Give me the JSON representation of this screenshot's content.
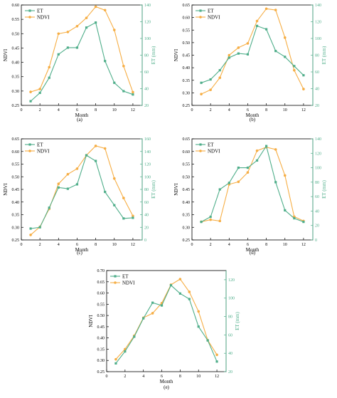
{
  "colors": {
    "ndvi": "#F6AE45",
    "et": "#4FAE8A",
    "axis": "#000000",
    "et_axis": "#4FAE8A"
  },
  "chart_data": [
    {
      "type": "line",
      "panel_label": "(a)",
      "xlabel": "Month",
      "ylabel_left": "NDVI",
      "ylabel_right": "ET (mm)",
      "x": [
        1,
        2,
        3,
        4,
        5,
        6,
        7,
        8,
        9,
        10,
        11,
        12
      ],
      "x_ticks": [
        0,
        2,
        4,
        6,
        8,
        10,
        12
      ],
      "xlim": [
        0,
        13
      ],
      "ylim_left": [
        0.25,
        0.6
      ],
      "yticks_left": [
        "0.25",
        "0.30",
        "0.35",
        "0.40",
        "0.45",
        "0.50",
        "0.55",
        "0.60"
      ],
      "ylim_right": [
        20,
        140
      ],
      "yticks_right": [
        "20",
        "40",
        "60",
        "80",
        "100",
        "120",
        "140"
      ],
      "legend": "top-left",
      "series": [
        {
          "name": "ET",
          "axis": "right",
          "values": [
            25,
            35,
            53,
            81,
            89,
            89,
            113,
            119,
            73,
            47,
            37,
            33
          ]
        },
        {
          "name": "NDVI",
          "axis": "left",
          "values": [
            0.297,
            0.307,
            0.383,
            0.5,
            0.506,
            0.526,
            0.555,
            0.594,
            0.582,
            0.513,
            0.387,
            0.296
          ]
        }
      ]
    },
    {
      "type": "line",
      "panel_label": "(b)",
      "xlabel": "Month",
      "ylabel_left": "NDVI",
      "ylabel_right": "ET (mm)",
      "x": [
        1,
        2,
        3,
        4,
        5,
        6,
        7,
        8,
        9,
        10,
        11,
        12
      ],
      "x_ticks": [
        0,
        2,
        4,
        6,
        8,
        10,
        12
      ],
      "xlim": [
        0,
        13
      ],
      "ylim_left": [
        0.25,
        0.65
      ],
      "yticks_left": [
        "0.25",
        "0.30",
        "0.35",
        "0.40",
        "0.45",
        "0.50",
        "0.55",
        "0.60",
        "0.65"
      ],
      "ylim_right": [
        20,
        140
      ],
      "yticks_right": [
        "20",
        "40",
        "60",
        "80",
        "100",
        "120",
        "140"
      ],
      "legend": "top-left",
      "series": [
        {
          "name": "ET",
          "axis": "right",
          "values": [
            47,
            51,
            62,
            77,
            82,
            81,
            115,
            111,
            85,
            78,
            67,
            56
          ]
        },
        {
          "name": "NDVI",
          "axis": "left",
          "values": [
            0.295,
            0.312,
            0.36,
            0.45,
            0.48,
            0.497,
            0.586,
            0.635,
            0.63,
            0.52,
            0.39,
            0.315
          ]
        }
      ]
    },
    {
      "type": "line",
      "panel_label": "(c)",
      "xlabel": "Month",
      "ylabel_left": "NDVI",
      "ylabel_right": "ET (mm)",
      "x": [
        1,
        2,
        3,
        4,
        5,
        6,
        7,
        8,
        9,
        10,
        11,
        12
      ],
      "x_ticks": [
        0,
        2,
        4,
        6,
        8,
        10,
        12
      ],
      "xlim": [
        0,
        13
      ],
      "ylim_left": [
        0.25,
        0.65
      ],
      "yticks_left": [
        "0.25",
        "0.30",
        "0.35",
        "0.40",
        "0.45",
        "0.50",
        "0.55",
        "0.60",
        "0.65"
      ],
      "ylim_right": [
        0,
        160
      ],
      "yticks_right": [
        "0",
        "20",
        "40",
        "60",
        "80",
        "100",
        "120",
        "140",
        "160"
      ],
      "legend": "top-left",
      "series": [
        {
          "name": "ET",
          "axis": "right",
          "values": [
            18,
            20,
            51,
            83,
            81,
            88,
            134,
            125,
            76,
            55,
            34,
            35
          ]
        },
        {
          "name": "NDVI",
          "axis": "left",
          "values": [
            0.27,
            0.302,
            0.373,
            0.472,
            0.51,
            0.532,
            0.585,
            0.622,
            0.612,
            0.493,
            0.416,
            0.345
          ]
        }
      ]
    },
    {
      "type": "line",
      "panel_label": "(d)",
      "xlabel": "Month",
      "ylabel_left": "NDVI",
      "ylabel_right": "ET (mm)",
      "x": [
        1,
        2,
        3,
        4,
        5,
        6,
        7,
        8,
        9,
        10,
        11,
        12
      ],
      "x_ticks": [
        0,
        2,
        4,
        6,
        8,
        10,
        12
      ],
      "xlim": [
        0,
        13
      ],
      "ylim_left": [
        0.25,
        0.65
      ],
      "yticks_left": [
        "0.25",
        "0.30",
        "0.35",
        "0.40",
        "0.45",
        "0.50",
        "0.55",
        "0.60",
        "0.65"
      ],
      "ylim_right": [
        0,
        140
      ],
      "yticks_right": [
        "0",
        "20",
        "40",
        "60",
        "80",
        "100",
        "120",
        "140"
      ],
      "legend": "top-left",
      "series": [
        {
          "name": "ET",
          "axis": "right",
          "values": [
            25,
            32,
            70,
            79,
            100,
            100,
            110,
            130,
            80,
            41,
            30,
            25
          ]
        },
        {
          "name": "NDVI",
          "axis": "left",
          "values": [
            0.322,
            0.33,
            0.325,
            0.47,
            0.48,
            0.517,
            0.603,
            0.617,
            0.608,
            0.505,
            0.342,
            0.325
          ]
        }
      ]
    },
    {
      "type": "line",
      "panel_label": "(e)",
      "xlabel": "Month",
      "ylabel_left": "NDVI",
      "ylabel_right": "ET (mm)",
      "x": [
        1,
        2,
        3,
        4,
        5,
        6,
        7,
        8,
        9,
        10,
        11,
        12
      ],
      "x_ticks": [
        0,
        2,
        4,
        6,
        8,
        10,
        12
      ],
      "xlim": [
        0,
        13
      ],
      "ylim_left": [
        0.25,
        0.7
      ],
      "yticks_left": [
        "0.25",
        "0.30",
        "0.35",
        "0.40",
        "0.45",
        "0.50",
        "0.55",
        "0.60",
        "0.65",
        "0.70"
      ],
      "ylim_right": [
        20,
        130
      ],
      "yticks_right": [
        "20",
        "40",
        "60",
        "80",
        "100",
        "120"
      ],
      "legend": "top-left",
      "series": [
        {
          "name": "ET",
          "axis": "right",
          "values": [
            29,
            42,
            58,
            78,
            95,
            92,
            114,
            105,
            99,
            69,
            54,
            31
          ]
        },
        {
          "name": "NDVI",
          "axis": "left",
          "values": [
            0.305,
            0.35,
            0.41,
            0.49,
            0.51,
            0.555,
            0.637,
            0.662,
            0.605,
            0.518,
            0.39,
            0.325
          ]
        }
      ]
    }
  ]
}
